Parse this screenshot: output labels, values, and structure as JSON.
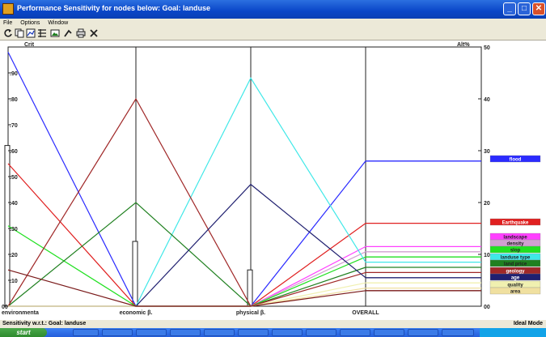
{
  "window": {
    "title": "Performance Sensitivity for nodes below: Goal: landuse"
  },
  "menu": [
    "File",
    "Options",
    "Window"
  ],
  "toolbar": {
    "icons": [
      "refresh-icon",
      "copy-icon",
      "chart-icon",
      "grid-icon",
      "picture-icon",
      "cursor-icon",
      "print-icon",
      "close-x-icon"
    ]
  },
  "chart_data": {
    "type": "line",
    "left_axis": {
      "label": "Crit",
      "ticks": [
        ".10",
        ".20",
        ".30",
        ".40",
        ".50",
        ".60",
        ".70",
        ".80",
        ".90"
      ],
      "min": 0,
      "max": 1.0
    },
    "right_axis": {
      "label": "Alt%",
      "ticks": [
        "00",
        "10",
        "20",
        "30",
        "40",
        "50"
      ],
      "min": 0,
      "max": 50
    },
    "criteria": [
      "environmenta",
      "economic β.",
      "physical β.",
      "OVERALL"
    ],
    "bars": [
      0.62,
      0.25,
      0.14
    ],
    "series": [
      {
        "name": "flood",
        "color": "#2b2bff",
        "values": [
          0.98,
          0.0,
          0.0,
          28.0
        ]
      },
      {
        "name": "Earthquake",
        "color": "#e02020",
        "values": [
          0.55,
          0.0,
          0.0,
          16.0
        ]
      },
      {
        "name": "landscape",
        "color": "#ff40ff",
        "values": [
          0.0,
          0.0,
          0.0,
          11.5
        ]
      },
      {
        "name": "density",
        "color": "#d0a0d0",
        "values": [
          0.0,
          0.0,
          0.0,
          10.5
        ]
      },
      {
        "name": "slop",
        "color": "#20e020",
        "values": [
          0.31,
          0.0,
          0.0,
          9.5
        ]
      },
      {
        "name": "landuse type",
        "color": "#40e8e8",
        "values": [
          0.0,
          0.0,
          0.88,
          8.5
        ]
      },
      {
        "name": "land price",
        "color": "#208020",
        "values": [
          0.0,
          0.4,
          0.0,
          7.5
        ]
      },
      {
        "name": "geology",
        "color": "#a02828",
        "values": [
          0.0,
          0.8,
          0.0,
          6.5
        ]
      },
      {
        "name": "age",
        "color": "#202070",
        "values": [
          0.0,
          0.0,
          0.47,
          5.5
        ]
      },
      {
        "name": "quality",
        "color": "#f0f0b0",
        "values": [
          0.0,
          0.0,
          0.0,
          4.5
        ]
      },
      {
        "name": "area",
        "color": "#f0e0a0",
        "values": [
          0.0,
          0.0,
          0.0,
          3.5
        ]
      },
      {
        "name": "",
        "color": "#7a1a1a",
        "values": [
          0.14,
          0.0,
          0.0,
          3.0
        ]
      }
    ]
  },
  "legend_labels": [
    "flood",
    "Earthquake",
    "landscape",
    "density",
    "slop",
    "landuse type",
    "land price",
    "geology",
    "age",
    "quality",
    "area"
  ],
  "status": {
    "left": "Sensitivity w.r.t.: Goal: landuse",
    "right": "Ideal Mode"
  },
  "taskbar": {
    "start_label": "start"
  }
}
